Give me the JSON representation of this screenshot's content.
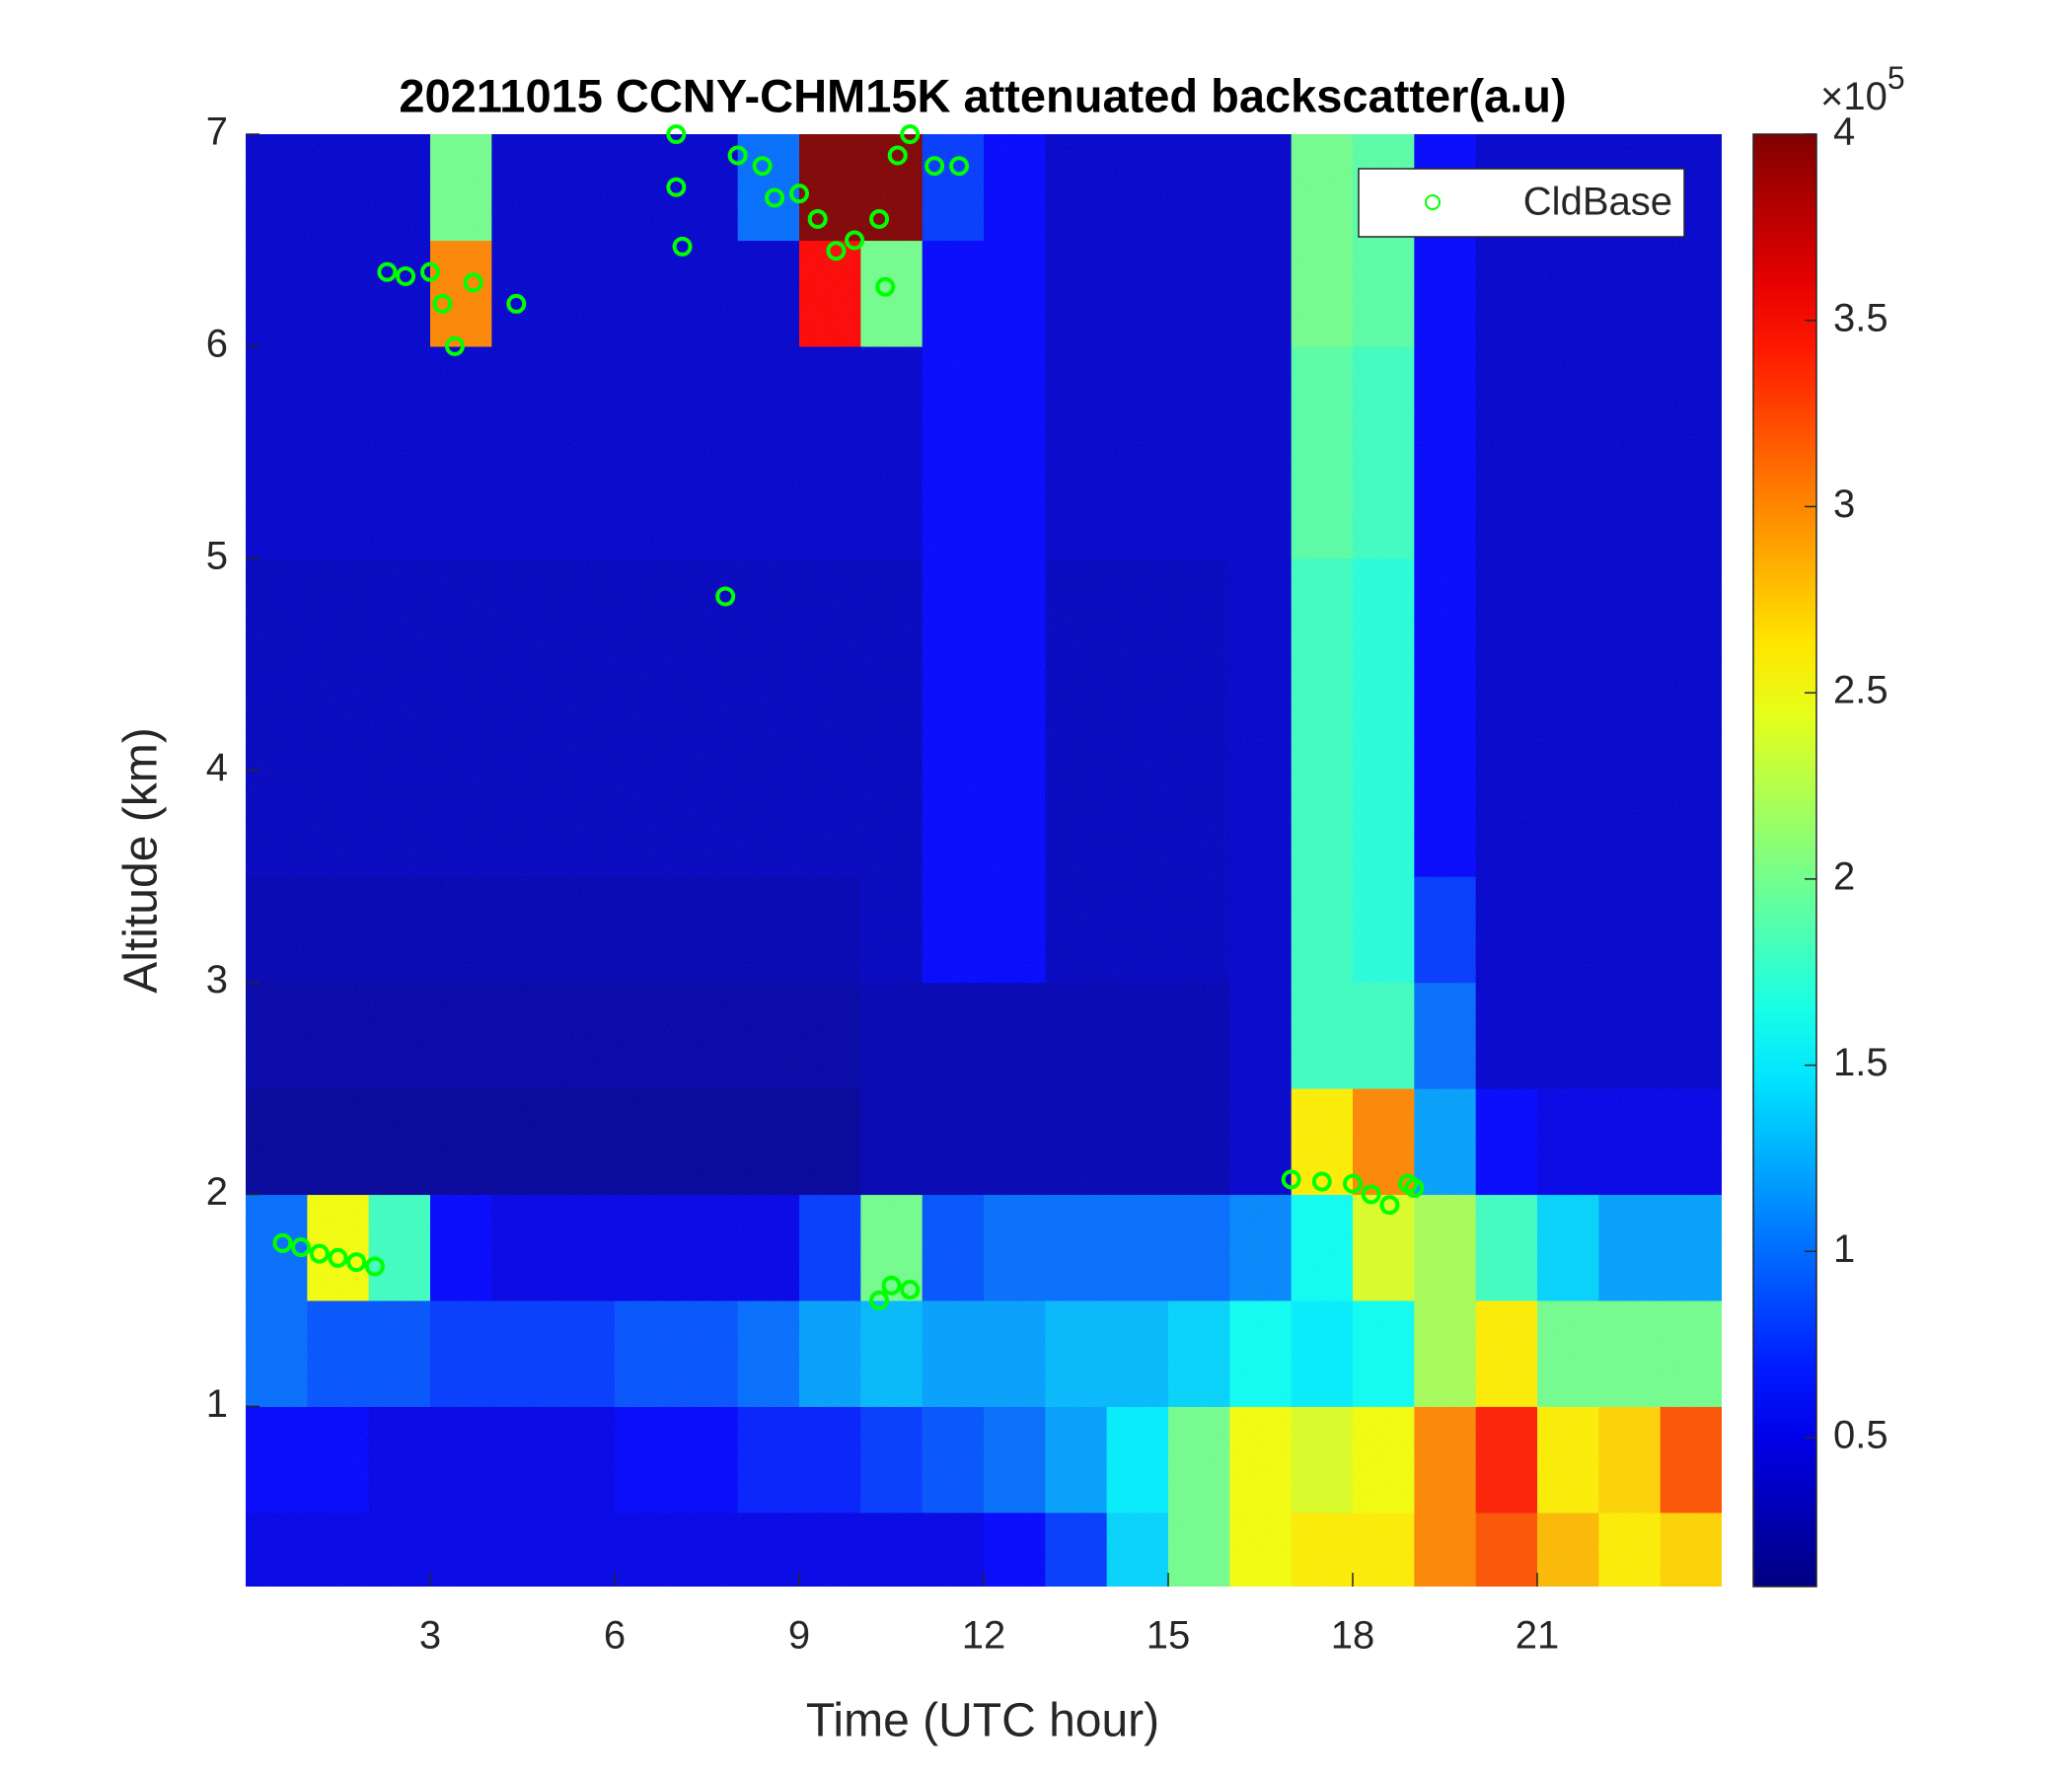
{
  "chart_data": {
    "type": "heatmap",
    "title": "20211015 CCNY-CHM15K attenuated backscatter(a.u)",
    "x_label": "Time (UTC hour)",
    "y_label": "Altitude (km)",
    "xlim": [
      0,
      24
    ],
    "ylim": [
      0.15,
      7
    ],
    "xticks": [
      3,
      6,
      9,
      12,
      15,
      18,
      21
    ],
    "yticks": [
      1,
      2,
      3,
      4,
      5,
      6,
      7
    ],
    "x_edges": [
      0,
      1,
      2,
      3,
      4,
      5,
      6,
      7,
      8,
      9,
      10,
      11,
      12,
      13,
      14,
      15,
      16,
      17,
      18,
      19,
      20,
      21,
      22,
      23,
      24
    ],
    "y_edges": [
      0.15,
      0.5,
      1,
      1.5,
      2,
      2.5,
      3,
      3.5,
      4,
      4.5,
      5,
      5.5,
      6,
      6.5,
      7
    ],
    "z": [
      [
        0.5,
        0.5,
        0.5,
        0.5,
        0.5,
        0.5,
        0.5,
        0.5,
        0.5,
        0.5,
        0.5,
        0.5,
        0.6,
        0.8,
        1.4,
        2.0,
        2.5,
        2.6,
        2.6,
        3.0,
        3.2,
        2.8,
        2.6,
        2.7
      ],
      [
        0.6,
        0.6,
        0.5,
        0.5,
        0.5,
        0.5,
        0.6,
        0.6,
        0.7,
        0.7,
        0.8,
        0.9,
        1.0,
        1.2,
        1.5,
        2.0,
        2.5,
        2.4,
        2.5,
        3.0,
        3.4,
        2.6,
        2.7,
        3.2
      ],
      [
        1.0,
        0.9,
        0.9,
        0.8,
        0.8,
        0.8,
        0.9,
        0.9,
        1.0,
        1.2,
        1.3,
        1.2,
        1.2,
        1.3,
        1.3,
        1.4,
        1.6,
        1.5,
        1.6,
        2.2,
        2.6,
        2.0,
        2.0,
        2.0
      ],
      [
        1.0,
        2.5,
        1.8,
        0.6,
        0.5,
        0.5,
        0.5,
        0.5,
        0.5,
        0.8,
        2.0,
        0.9,
        1.0,
        1.0,
        1.0,
        1.0,
        1.1,
        1.6,
        2.4,
        2.2,
        1.8,
        1.4,
        1.2,
        1.2
      ],
      [
        0.2,
        0.2,
        0.2,
        0.2,
        0.2,
        0.2,
        0.2,
        0.2,
        0.2,
        0.2,
        0.3,
        0.3,
        0.3,
        0.3,
        0.3,
        0.3,
        0.4,
        2.6,
        3.0,
        1.2,
        0.6,
        0.5,
        0.5,
        0.5
      ],
      [
        0.25,
        0.25,
        0.25,
        0.25,
        0.25,
        0.25,
        0.25,
        0.25,
        0.25,
        0.25,
        0.3,
        0.3,
        0.3,
        0.3,
        0.3,
        0.3,
        0.4,
        1.8,
        1.8,
        1.0,
        0.4,
        0.4,
        0.4,
        0.4
      ],
      [
        0.3,
        0.3,
        0.3,
        0.3,
        0.3,
        0.3,
        0.3,
        0.3,
        0.3,
        0.3,
        0.35,
        0.6,
        0.6,
        0.35,
        0.35,
        0.35,
        0.4,
        1.8,
        1.7,
        0.8,
        0.4,
        0.4,
        0.4,
        0.4
      ],
      [
        0.35,
        0.35,
        0.35,
        0.35,
        0.35,
        0.35,
        0.35,
        0.35,
        0.35,
        0.35,
        0.35,
        0.6,
        0.6,
        0.35,
        0.35,
        0.35,
        0.4,
        1.8,
        1.7,
        0.6,
        0.4,
        0.4,
        0.4,
        0.4
      ],
      [
        0.35,
        0.35,
        0.35,
        0.35,
        0.35,
        0.35,
        0.35,
        0.35,
        0.35,
        0.35,
        0.35,
        0.6,
        0.6,
        0.35,
        0.35,
        0.35,
        0.4,
        1.8,
        1.7,
        0.6,
        0.4,
        0.4,
        0.4,
        0.4
      ],
      [
        0.35,
        0.35,
        0.35,
        0.35,
        0.35,
        0.35,
        0.35,
        0.35,
        0.35,
        0.35,
        0.35,
        0.6,
        0.6,
        0.35,
        0.35,
        0.35,
        0.4,
        1.8,
        1.7,
        0.6,
        0.4,
        0.4,
        0.4,
        0.4
      ],
      [
        0.4,
        0.4,
        0.4,
        0.4,
        0.4,
        0.4,
        0.4,
        0.4,
        0.4,
        0.4,
        0.4,
        0.6,
        0.6,
        0.4,
        0.4,
        0.4,
        0.4,
        1.9,
        1.8,
        0.6,
        0.4,
        0.4,
        0.4,
        0.4
      ],
      [
        0.4,
        0.4,
        0.4,
        0.4,
        0.4,
        0.4,
        0.4,
        0.4,
        0.4,
        0.4,
        0.4,
        0.6,
        0.6,
        0.4,
        0.4,
        0.4,
        0.4,
        1.9,
        1.8,
        0.6,
        0.4,
        0.4,
        0.4,
        0.4
      ],
      [
        0.4,
        0.4,
        0.4,
        3.0,
        0.4,
        0.4,
        0.4,
        0.4,
        0.4,
        3.5,
        2.0,
        0.6,
        0.6,
        0.4,
        0.4,
        0.4,
        0.4,
        2.0,
        1.9,
        0.6,
        0.4,
        0.4,
        0.4,
        0.4
      ],
      [
        0.4,
        0.4,
        0.4,
        2.0,
        0.4,
        0.4,
        0.4,
        0.4,
        1.0,
        4.0,
        4.0,
        0.8,
        0.6,
        0.4,
        0.4,
        0.4,
        0.4,
        2.0,
        1.9,
        0.6,
        0.4,
        0.4,
        0.4,
        0.4
      ]
    ],
    "clim": [
      0.1,
      4
    ],
    "colormap": "jet",
    "colorbar_ticks": [
      0.5,
      1,
      1.5,
      2,
      2.5,
      3,
      3.5,
      4
    ],
    "colorbar_scale_label": "×10",
    "colorbar_scale_exponent": 5,
    "legend_position": "upper right",
    "series": [
      {
        "name": "CldBase",
        "type": "scatter",
        "color": "#00ff00",
        "x": [
          0.6,
          0.9,
          1.2,
          1.5,
          1.8,
          2.1,
          2.3,
          2.6,
          3.0,
          3.2,
          3.4,
          3.7,
          4.4,
          7.0,
          7.0,
          7.1,
          7.8,
          8.0,
          8.4,
          8.6,
          9.0,
          9.3,
          9.6,
          9.9,
          10.3,
          10.4,
          10.6,
          10.8,
          11.2,
          11.6,
          10.3,
          10.5,
          10.8,
          17.0,
          17.5,
          18.0,
          18.3,
          18.6,
          18.9,
          19.0
        ],
        "y": [
          1.77,
          1.75,
          1.72,
          1.7,
          1.68,
          1.66,
          6.35,
          6.33,
          6.35,
          6.2,
          6.0,
          6.3,
          6.2,
          7.0,
          6.75,
          6.47,
          4.82,
          6.9,
          6.85,
          6.7,
          6.72,
          6.6,
          6.45,
          6.5,
          6.6,
          6.28,
          6.9,
          7.0,
          6.85,
          6.85,
          1.5,
          1.57,
          1.55,
          2.07,
          2.06,
          2.05,
          2.0,
          1.95,
          2.05,
          2.03
        ]
      }
    ]
  }
}
